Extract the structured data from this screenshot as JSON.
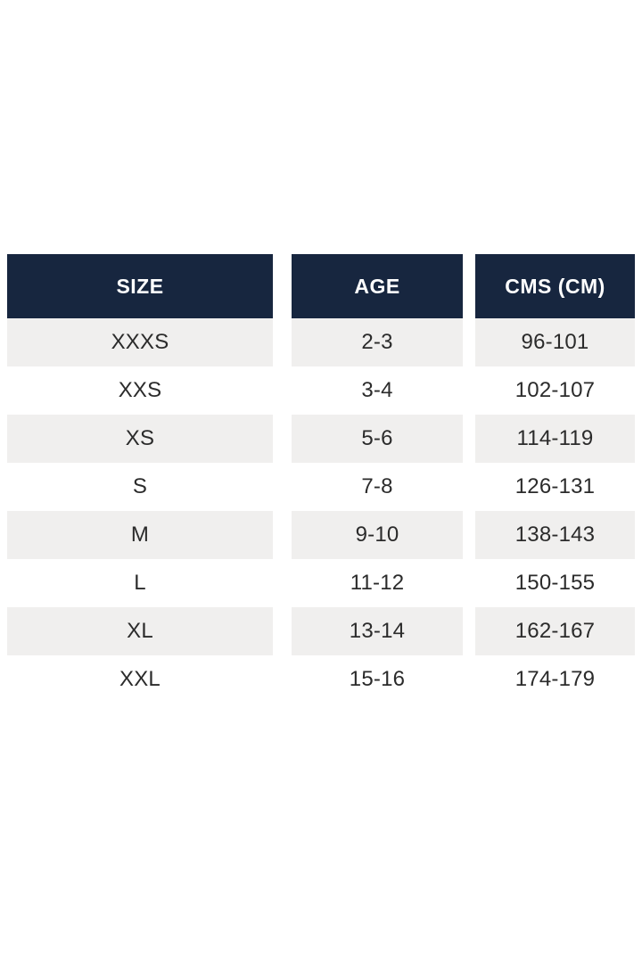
{
  "chart_data": {
    "type": "table",
    "title": "",
    "columns": [
      "SIZE",
      "AGE",
      "CMS (CM)"
    ],
    "rows": [
      [
        "XXXS",
        "2-3",
        "96-101"
      ],
      [
        "XXS",
        "3-4",
        "102-107"
      ],
      [
        "XS",
        "5-6",
        "114-119"
      ],
      [
        "S",
        "7-8",
        "126-131"
      ],
      [
        "M",
        "9-10",
        "138-143"
      ],
      [
        "L",
        "11-12",
        "150-155"
      ],
      [
        "XL",
        "13-14",
        "162-167"
      ],
      [
        "XXL",
        "15-16",
        "174-179"
      ]
    ],
    "grid": false,
    "legend_position": "none",
    "layout": "three-separate-column-blocks-with-gaps",
    "row_striping": "odd-rows-gray-even-rows-white"
  },
  "theme": {
    "page_bg": "#ffffff",
    "header_bg": "#17263f",
    "header_text": "#ffffff",
    "row_bg": "#ffffff",
    "row_alt_bg": "#f0efee",
    "cell_text": "#2b2b2b"
  }
}
